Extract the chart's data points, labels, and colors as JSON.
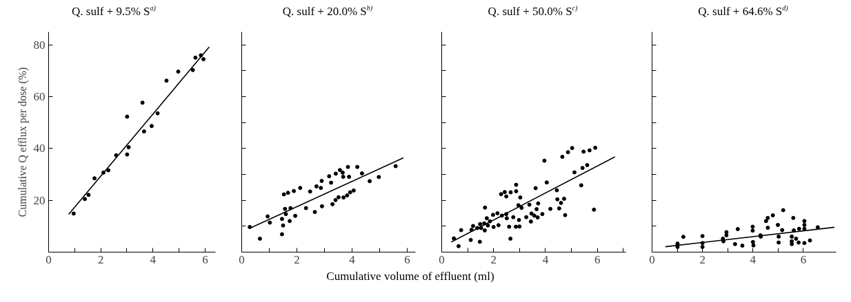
{
  "chart_data": [
    {
      "type": "scatter",
      "title": "Q. sulf + 9.5% S$^{a)}$",
      "ylabel": "Cumulative Q efflux per dose (%)",
      "xlim": [
        0,
        6.4
      ],
      "ylim": [
        0,
        85
      ],
      "xticks": [
        0,
        {
          "value": 1,
          "label": null
        },
        2,
        {
          "value": 3,
          "label": null
        },
        4,
        {
          "value": 5,
          "label": null
        },
        6
      ],
      "yticks": [
        20,
        40,
        60,
        80
      ],
      "series": [
        {
          "marker": "circle",
          "color": "#000000",
          "x": [
            0.96,
            1.39,
            1.53,
            1.76,
            2.1,
            2.29,
            2.59,
            3.01,
            3.01,
            3.07,
            3.6,
            3.66,
            3.95,
            4.18,
            4.52,
            4.97,
            5.53,
            5.63,
            5.84,
            5.94
          ],
          "values": [
            14.9,
            20.5,
            22.1,
            28.5,
            30.7,
            31.6,
            37.4,
            52.3,
            37.7,
            40.5,
            57.7,
            46.6,
            48.7,
            53.6,
            66.2,
            69.7,
            70.3,
            75.1,
            76.0,
            74.5
          ]
        },
        {
          "type": "line",
          "color": "#000000",
          "x": [
            0.77,
            6.16
          ],
          "values": [
            14.6,
            79.2
          ]
        }
      ]
    },
    {
      "type": "scatter",
      "title": "Q. sulf + 20.0% S$^{b)}$",
      "xlabel": "Cumulative volume of effluent (ml)",
      "tick_labels": "x",
      "xlim": [
        0,
        6.3
      ],
      "ylim": [
        0,
        85
      ],
      "xticks": [
        0,
        {
          "value": 1,
          "label": null
        },
        2,
        {
          "value": 3,
          "label": null
        },
        4,
        {
          "value": 5,
          "label": null
        },
        6
      ],
      "yticks": [
        10,
        20,
        30,
        40,
        50,
        60,
        70,
        80
      ],
      "series": [
        {
          "marker": "circle",
          "color": "#000000",
          "x": [
            0.29,
            0.66,
            0.94,
            1.02,
            1.46,
            1.46,
            1.5,
            1.53,
            1.57,
            1.6,
            1.68,
            1.74,
            1.77,
            1.89,
            1.94,
            2.12,
            2.33,
            2.48,
            2.65,
            2.71,
            2.87,
            2.9,
            2.91,
            3.17,
            3.24,
            3.29,
            3.4,
            3.41,
            3.51,
            3.56,
            3.66,
            3.68,
            3.69,
            3.82,
            3.85,
            3.89,
            3.93,
            4.06,
            4.19,
            4.36,
            4.64,
            4.97,
            5.58
          ],
          "values": [
            9.7,
            5.2,
            13.8,
            11.4,
            12.8,
            6.9,
            10.3,
            22.3,
            16.7,
            14.7,
            22.9,
            12.0,
            17.0,
            23.6,
            14.0,
            24.8,
            17.0,
            23.4,
            15.5,
            25.4,
            24.8,
            27.5,
            17.7,
            29.3,
            26.8,
            18.5,
            20.1,
            30.3,
            21.2,
            31.7,
            30.7,
            29.1,
            21.1,
            21.9,
            32.9,
            29.1,
            23.1,
            23.8,
            32.9,
            30.4,
            27.4,
            29.0,
            33.2
          ]
        },
        {
          "type": "line",
          "color": "#000000",
          "x": [
            0.27,
            5.86
          ],
          "values": [
            9.1,
            36.4
          ]
        }
      ]
    },
    {
      "type": "scatter",
      "title": "Q. sulf + 50.0% S$^{c)}$",
      "tick_labels": "x",
      "xlim": [
        0,
        7.1
      ],
      "ylim": [
        0,
        85
      ],
      "xticks": [
        0,
        {
          "value": 1,
          "label": null
        },
        2,
        {
          "value": 3,
          "label": null
        },
        4,
        {
          "value": 5,
          "label": null
        },
        6,
        {
          "value": 7,
          "label": null
        }
      ],
      "yticks": [
        10,
        20,
        30,
        40,
        50,
        60,
        70,
        80
      ],
      "series": [
        {
          "marker": "circle",
          "color": "#000000",
          "x": [
            0.47,
            0.65,
            0.75,
            1.12,
            1.15,
            1.21,
            1.37,
            1.47,
            1.48,
            1.52,
            1.64,
            1.66,
            1.67,
            1.74,
            1.78,
            1.86,
            1.98,
            2.0,
            2.15,
            2.19,
            2.29,
            2.32,
            2.43,
            2.49,
            2.49,
            2.51,
            2.6,
            2.65,
            2.66,
            2.76,
            2.86,
            2.87,
            2.87,
            2.98,
            3.0,
            2.96,
            3.03,
            3.08,
            3.26,
            3.38,
            3.44,
            3.46,
            3.57,
            3.62,
            3.66,
            3.7,
            3.72,
            3.88,
            3.96,
            4.05,
            4.19,
            4.44,
            4.46,
            4.53,
            4.6,
            4.65,
            4.72,
            4.76,
            4.87,
            5.03,
            5.12,
            5.38,
            5.43,
            5.47,
            5.61,
            5.7,
            5.87,
            5.92
          ],
          "values": [
            5.3,
            2.3,
            8.5,
            4.7,
            8.6,
            10.1,
            9.3,
            4.0,
            10.8,
            9.3,
            11.1,
            8.4,
            17.2,
            13.1,
            10.3,
            11.9,
            14.4,
            9.7,
            15.0,
            10.4,
            22.4,
            14.1,
            23.2,
            21.5,
            14.7,
            13.1,
            9.8,
            5.2,
            23.1,
            13.5,
            9.8,
            26.0,
            23.5,
            12.4,
            9.9,
            18.1,
            21.1,
            17.1,
            13.5,
            18.3,
            11.8,
            14.9,
            14.1,
            24.7,
            16.6,
            13.4,
            18.8,
            14.7,
            35.3,
            26.9,
            16.7,
            23.9,
            20.4,
            16.9,
            19.0,
            36.8,
            20.6,
            14.3,
            38.6,
            40.2,
            30.8,
            25.8,
            32.5,
            38.8,
            33.6,
            39.3,
            16.4,
            40.3
          ]
        },
        {
          "type": "line",
          "color": "#000000",
          "x": [
            0.37,
            6.68
          ],
          "values": [
            3.9,
            36.8
          ]
        }
      ]
    },
    {
      "type": "scatter",
      "title": "Q. sulf + 64.6% S$^{d)}$",
      "tick_labels": "x",
      "xlim": [
        0,
        7.3
      ],
      "ylim": [
        0,
        85
      ],
      "xticks": [
        0,
        {
          "value": 1,
          "label": null
        },
        2,
        {
          "value": 3,
          "label": null
        },
        4,
        {
          "value": 5,
          "label": null
        },
        6
      ],
      "yticks": [
        10,
        20,
        30,
        40,
        50,
        60,
        70,
        80
      ],
      "series": [
        {
          "marker": "circle",
          "color": "#000000",
          "x": [
            1.01,
            1.01,
            1.01,
            1.24,
            2.0,
            2.0,
            2.0,
            2.81,
            2.83,
            2.95,
            2.95,
            3.29,
            3.4,
            3.58,
            3.99,
            3.99,
            4.0,
            4.02,
            4.3,
            4.31,
            4.52,
            4.59,
            4.59,
            4.79,
            4.99,
            5.02,
            5.02,
            5.16,
            5.2,
            5.54,
            5.54,
            5.54,
            5.6,
            5.62,
            5.71,
            5.81,
            5.83,
            6.04,
            6.04,
            6.04,
            6.04,
            6.26,
            6.57
          ],
          "values": [
            3.3,
            2.6,
            2.0,
            5.9,
            6.2,
            3.5,
            2.0,
            5.2,
            4.2,
            7.7,
            6.5,
            3.1,
            8.9,
            2.5,
            9.8,
            8.3,
            3.9,
            2.6,
            6.5,
            6.0,
            12.0,
            13.2,
            9.4,
            14.2,
            10.5,
            6.0,
            3.7,
            8.5,
            16.2,
            6.0,
            4.2,
            3.1,
            13.2,
            8.4,
            5.2,
            3.7,
            9.0,
            12.0,
            10.5,
            9.0,
            3.5,
            4.5,
            9.6
          ]
        },
        {
          "type": "line",
          "color": "#000000",
          "x": [
            0.53,
            7.23
          ],
          "values": [
            2.1,
            9.6
          ]
        }
      ]
    }
  ]
}
